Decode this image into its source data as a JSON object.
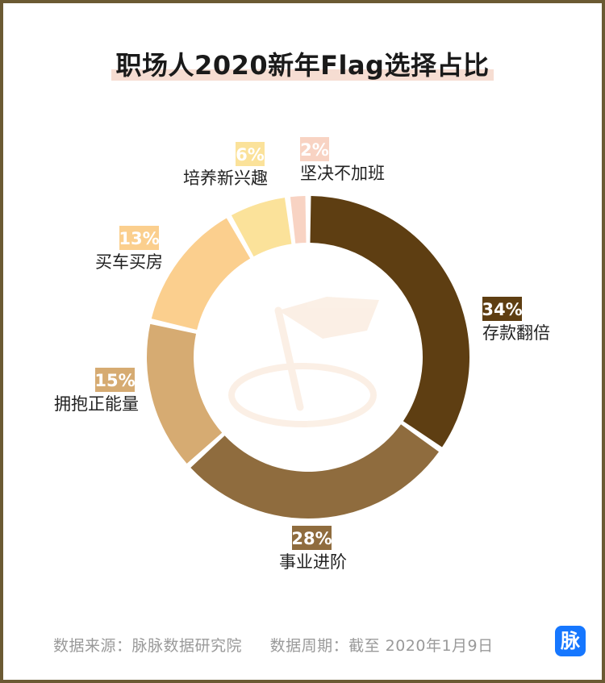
{
  "title": "职场人2020新年Flag选择占比",
  "chart_data": {
    "type": "donut",
    "title": "职场人2020新年Flag选择占比",
    "slices": [
      {
        "label": "存款翻倍",
        "pct": "34%",
        "value": 34,
        "color": "#5e3e12"
      },
      {
        "label": "事业进阶",
        "pct": "28%",
        "value": 28,
        "color": "#8f6c3e"
      },
      {
        "label": "拥抱正能量",
        "pct": "15%",
        "value": 15,
        "color": "#d6ab72"
      },
      {
        "label": "买车买房",
        "pct": "13%",
        "value": 13,
        "color": "#fbcf8e"
      },
      {
        "label": "培养新兴趣",
        "pct": "6%",
        "value": 6,
        "color": "#fbe29a"
      },
      {
        "label": "坚决不加班",
        "pct": "2%",
        "value": 2,
        "color": "#f8d3c3"
      }
    ]
  },
  "footer": {
    "source": "数据来源：脉脉数据研究院",
    "period": "数据周期：截至 2020年1月9日"
  },
  "logo_text": "脉"
}
